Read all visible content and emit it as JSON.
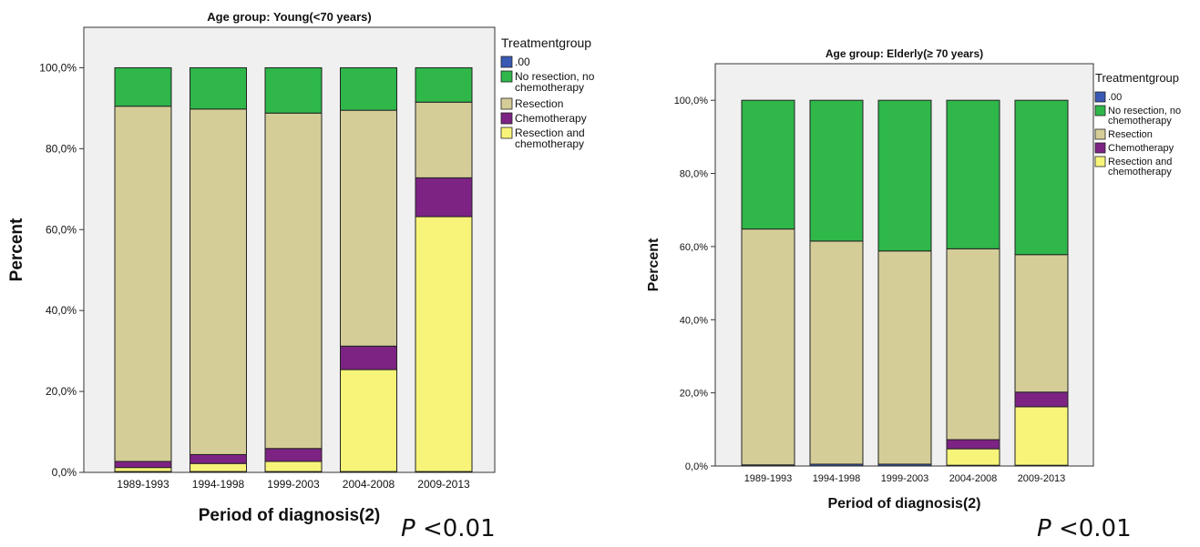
{
  "colors": {
    "plot_bg": "#f0f0f0",
    ".00": "#3a59b5",
    "No resection, no chemotherapy": "#2fb74a",
    "Resection": "#d4cd98",
    "Chemotherapy": "#7d2384",
    "Resection and chemotherapy": "#f8f47a"
  },
  "chart_data": [
    {
      "type": "bar",
      "stacked": true,
      "title": "Age group: Young(<70 years)",
      "xlabel": "Period of diagnosis(2)",
      "ylabel": "Percent",
      "ylim": [
        0,
        110
      ],
      "y_ticks": [
        "0,0%",
        "20,0%",
        "40,0%",
        "60,0%",
        "80,0%",
        "100,0%"
      ],
      "legend_title": "Treatmentgroup",
      "legend_position": "right",
      "categories": [
        "1989-1993",
        "1994-1998",
        "1999-2003",
        "2004-2008",
        "2009-2013"
      ],
      "series": [
        {
          "name": ".00",
          "values": [
            0.2,
            0.2,
            0.2,
            0.2,
            0.2
          ]
        },
        {
          "name": "Resection and chemotherapy",
          "values": [
            1.0,
            2.0,
            2.5,
            25.2,
            63.0
          ]
        },
        {
          "name": "Chemotherapy",
          "values": [
            1.5,
            2.2,
            3.2,
            5.8,
            9.6
          ]
        },
        {
          "name": "Resection",
          "values": [
            87.8,
            85.4,
            82.9,
            58.3,
            18.7
          ]
        },
        {
          "name": "No resection, no chemotherapy",
          "values": [
            9.5,
            10.2,
            11.2,
            10.5,
            8.5
          ]
        }
      ],
      "annotation": "P <0.01"
    },
    {
      "type": "bar",
      "stacked": true,
      "title": "Age group: Elderly(≥ 70 years)",
      "xlabel": "Period of diagnosis(2)",
      "ylabel": "Percent",
      "ylim": [
        0,
        110
      ],
      "y_ticks": [
        "0,0%",
        "20,0%",
        "40,0%",
        "60,0%",
        "80,0%",
        "100,0%"
      ],
      "legend_title": "Treatmentgroup",
      "legend_position": "right",
      "categories": [
        "1989-1993",
        "1994-1998",
        "1999-2003",
        "2004-2008",
        "2009-2013"
      ],
      "series": [
        {
          "name": ".00",
          "values": [
            0.3,
            0.5,
            0.5,
            0.2,
            0.2
          ]
        },
        {
          "name": "Resection and chemotherapy",
          "values": [
            0.0,
            0.0,
            0.0,
            4.5,
            16.0
          ]
        },
        {
          "name": "Chemotherapy",
          "values": [
            0.0,
            0.0,
            0.0,
            2.5,
            4.0
          ]
        },
        {
          "name": "Resection",
          "values": [
            64.5,
            61.0,
            58.3,
            52.2,
            37.6
          ]
        },
        {
          "name": "No resection, no chemotherapy",
          "values": [
            35.2,
            38.5,
            41.2,
            40.6,
            42.2
          ]
        }
      ],
      "annotation": "P <0.01"
    }
  ],
  "legend_order": [
    ".00",
    "No resection, no chemotherapy",
    "Resection",
    "Chemotherapy",
    "Resection and chemotherapy"
  ],
  "legend_labels": [
    [
      ".00"
    ],
    [
      "No resection, no",
      "chemotherapy"
    ],
    [
      "Resection"
    ],
    [
      "Chemotherapy"
    ],
    [
      "Resection and",
      "chemotherapy"
    ]
  ],
  "p_values": {
    "young": {
      "prefix": "P",
      "rest": "<0.01"
    },
    "elderly": {
      "prefix": "P",
      "rest": "<0.01"
    }
  }
}
